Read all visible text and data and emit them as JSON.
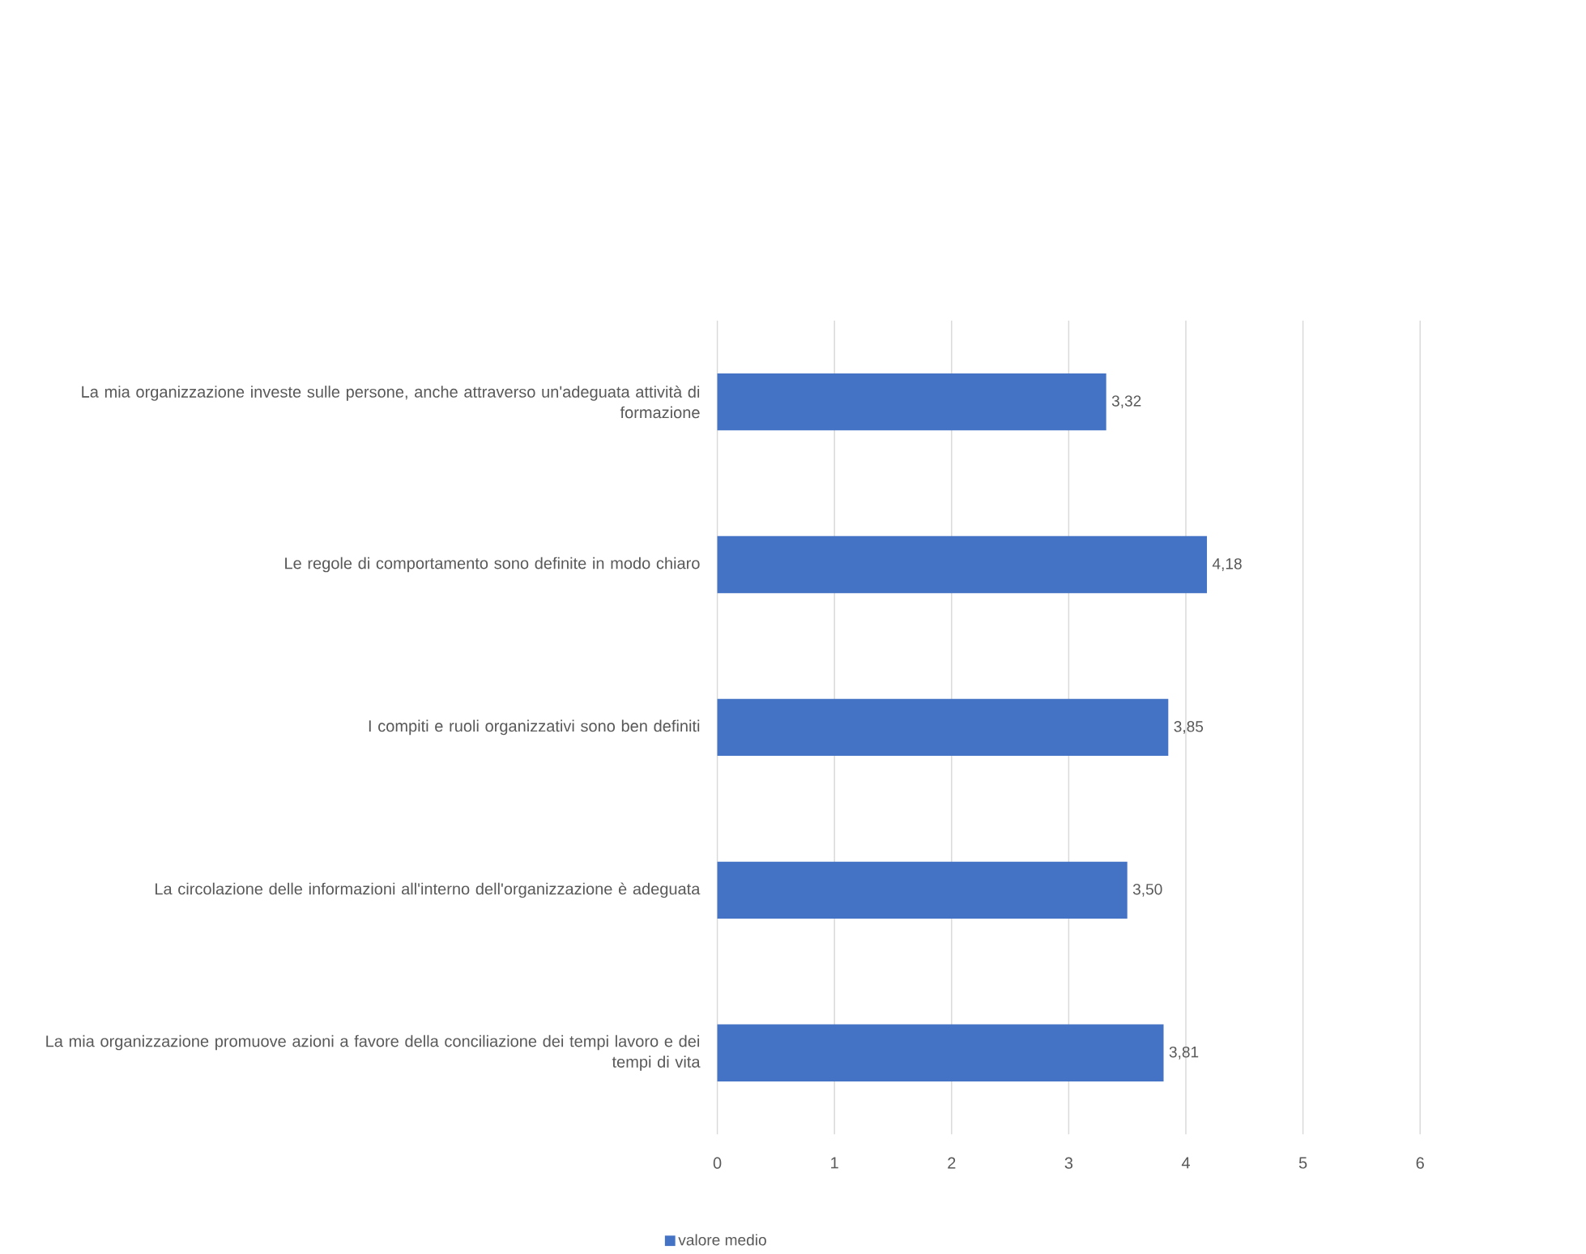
{
  "chart_data": {
    "type": "bar",
    "orientation": "horizontal",
    "categories": [
      "La mia organizzazione investe sulle persone, anche attraverso un'adeguata attività di formazione",
      "Le regole di comportamento sono definite in modo chiaro",
      "I compiti e ruoli organizzativi sono ben definiti",
      "La circolazione delle informazioni all'interno dell'organizzazione è adeguata",
      "La mia organizzazione promuove azioni a favore della conciliazione dei tempi lavoro e dei tempi di vita"
    ],
    "series": [
      {
        "name": "valore medio",
        "color": "#4472c4",
        "values": [
          3.32,
          4.18,
          3.85,
          3.5,
          3.81
        ],
        "value_labels": [
          "3,32",
          "4,18",
          "3,85",
          "3,50",
          "3,81"
        ]
      }
    ],
    "xlim": [
      0,
      6
    ],
    "xticks": [
      0,
      1,
      2,
      3,
      4,
      5,
      6
    ],
    "grid": "x",
    "legend": "bottom"
  }
}
